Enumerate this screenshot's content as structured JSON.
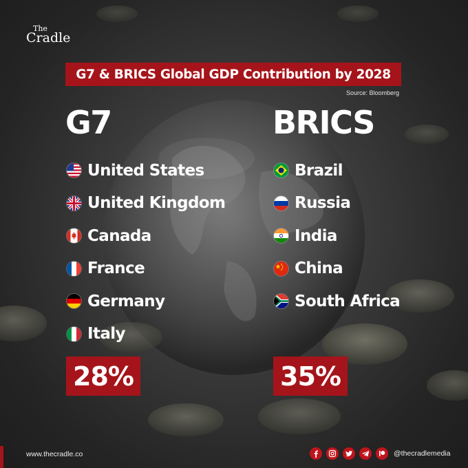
{
  "logo": {
    "the": "The",
    "cradle": "Cradle"
  },
  "title": "G7 & BRICS Global GDP Contribution by 2028",
  "source": "Source: Bloomberg",
  "groups": {
    "g7": {
      "heading": "G7",
      "countries": [
        "United States",
        "United Kingdom",
        "Canada",
        "France",
        "Germany",
        "Italy"
      ],
      "percent": "28%"
    },
    "brics": {
      "heading": "BRICS",
      "countries": [
        "Brazil",
        "Russia",
        "India",
        "China",
        "South Africa"
      ],
      "percent": "35%"
    }
  },
  "footer": {
    "website": "www.thecradle.co",
    "handle": "@thecradlemedia",
    "social_icons": [
      "facebook-icon",
      "instagram-icon",
      "twitter-icon",
      "telegram-icon",
      "patreon-icon"
    ]
  },
  "colors": {
    "accent_red": "#a5141a",
    "social_red": "#c0141c",
    "text": "#ffffff"
  }
}
